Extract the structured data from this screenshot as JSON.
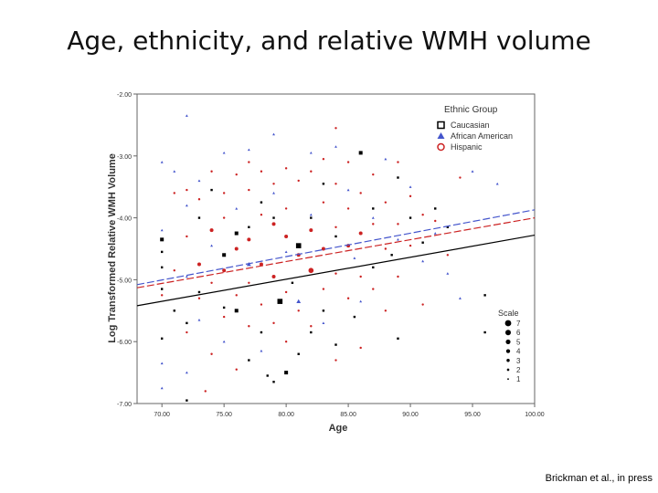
{
  "slide": {
    "title": "Age, ethnicity, and relative WMH volume",
    "citation": "Brickman et al., in press"
  },
  "colors": {
    "caucasian": "#000000",
    "african_american": "#4455cc",
    "hispanic": "#cc2222",
    "axis": "#666666"
  },
  "chart_data": {
    "type": "scatter",
    "title": "",
    "xlabel": "Age",
    "ylabel": "Log Transformed Relative WMH Volume",
    "xlim": [
      68,
      100
    ],
    "ylim": [
      -7.0,
      -2.0
    ],
    "xticks": [
      70,
      75,
      80,
      85,
      90,
      95,
      100
    ],
    "xtick_labels": [
      "70.00",
      "75.00",
      "80.00",
      "85.00",
      "90.00",
      "95.00",
      "100.00"
    ],
    "yticks": [
      -2,
      -3,
      -4,
      -5,
      -6,
      -7
    ],
    "ytick_labels": [
      "-2.00",
      "-3.00",
      "-4.00",
      "-5.00",
      "-6.00",
      "-7.00"
    ],
    "legend": {
      "title": "Ethnic Group",
      "position": "top-right",
      "entries": [
        "Caucasian",
        "African American",
        "Hispanic"
      ]
    },
    "scale_legend": {
      "title": "Scale",
      "position": "bottom-right",
      "sizes": [
        "7",
        "6",
        "5",
        "4",
        "3",
        "2",
        "1"
      ]
    },
    "fit_lines": [
      {
        "group": "Caucasian",
        "style": "solid",
        "x": [
          68,
          100
        ],
        "y": [
          -5.42,
          -4.28
        ]
      },
      {
        "group": "African American",
        "style": "dashed",
        "x": [
          68,
          100
        ],
        "y": [
          -5.08,
          -3.87
        ]
      },
      {
        "group": "Hispanic",
        "style": "dashed",
        "x": [
          68,
          100
        ],
        "y": [
          -5.13,
          -4.0
        ]
      }
    ],
    "series": [
      {
        "name": "Caucasian",
        "marker": "square",
        "points": [
          [
            70.0,
            -4.35,
            2
          ],
          [
            70.0,
            -4.55,
            1
          ],
          [
            70.0,
            -4.8,
            1
          ],
          [
            70.0,
            -5.15,
            1
          ],
          [
            70.0,
            -5.95,
            1
          ],
          [
            71.0,
            -5.5,
            1
          ],
          [
            72.0,
            -6.95,
            1
          ],
          [
            72.0,
            -5.7,
            1
          ],
          [
            73.0,
            -4.0,
            1
          ],
          [
            73.0,
            -5.2,
            1
          ],
          [
            74.0,
            -3.55,
            1
          ],
          [
            75.0,
            -4.6,
            2
          ],
          [
            75.0,
            -5.45,
            1
          ],
          [
            76.0,
            -4.25,
            2
          ],
          [
            76.0,
            -5.5,
            2
          ],
          [
            77.0,
            -4.15,
            1
          ],
          [
            77.0,
            -6.3,
            1
          ],
          [
            78.0,
            -3.75,
            1
          ],
          [
            78.0,
            -5.85,
            1
          ],
          [
            78.5,
            -6.55,
            1
          ],
          [
            79.0,
            -4.0,
            1
          ],
          [
            79.0,
            -6.65,
            1
          ],
          [
            79.5,
            -5.35,
            3
          ],
          [
            80.0,
            -6.5,
            2
          ],
          [
            80.5,
            -5.05,
            1
          ],
          [
            81.0,
            -4.45,
            3
          ],
          [
            81.0,
            -6.2,
            1
          ],
          [
            82.0,
            -4.0,
            1
          ],
          [
            82.0,
            -5.85,
            1
          ],
          [
            83.0,
            -3.45,
            1
          ],
          [
            83.0,
            -5.5,
            1
          ],
          [
            84.0,
            -4.3,
            1
          ],
          [
            84.0,
            -6.05,
            1
          ],
          [
            85.5,
            -5.6,
            1
          ],
          [
            86.0,
            -2.95,
            2
          ],
          [
            87.0,
            -3.85,
            1
          ],
          [
            87.0,
            -4.8,
            1
          ],
          [
            88.5,
            -4.6,
            1
          ],
          [
            89.0,
            -3.35,
            1
          ],
          [
            89.0,
            -5.95,
            1
          ],
          [
            90.0,
            -4.0,
            1
          ],
          [
            91.0,
            -4.4,
            1
          ],
          [
            92.0,
            -3.85,
            1
          ],
          [
            93.0,
            -4.15,
            1
          ],
          [
            96.0,
            -5.25,
            1
          ],
          [
            96.0,
            -5.85,
            1
          ]
        ]
      },
      {
        "name": "African American",
        "marker": "triangle",
        "points": [
          [
            70.0,
            -3.1,
            1
          ],
          [
            70.0,
            -4.2,
            1
          ],
          [
            70.0,
            -6.35,
            1
          ],
          [
            70.0,
            -6.75,
            1
          ],
          [
            71.0,
            -3.25,
            1
          ],
          [
            72.0,
            -2.35,
            1
          ],
          [
            72.0,
            -3.8,
            1
          ],
          [
            72.0,
            -4.95,
            1
          ],
          [
            72.0,
            -6.5,
            1
          ],
          [
            73.0,
            -3.4,
            1
          ],
          [
            73.0,
            -5.65,
            1
          ],
          [
            74.0,
            -4.45,
            1
          ],
          [
            75.0,
            -2.95,
            1
          ],
          [
            75.0,
            -6.0,
            1
          ],
          [
            76.0,
            -3.85,
            1
          ],
          [
            77.0,
            -2.9,
            1
          ],
          [
            77.0,
            -4.75,
            2
          ],
          [
            78.0,
            -6.15,
            1
          ],
          [
            79.0,
            -2.65,
            1
          ],
          [
            79.0,
            -3.6,
            1
          ],
          [
            80.0,
            -4.55,
            1
          ],
          [
            81.0,
            -5.35,
            2
          ],
          [
            82.0,
            -2.95,
            1
          ],
          [
            82.0,
            -3.95,
            1
          ],
          [
            83.0,
            -5.7,
            1
          ],
          [
            84.0,
            -2.85,
            1
          ],
          [
            85.0,
            -3.55,
            1
          ],
          [
            85.5,
            -4.65,
            1
          ],
          [
            86.0,
            -5.35,
            1
          ],
          [
            87.0,
            -4.0,
            1
          ],
          [
            88.0,
            -3.05,
            1
          ],
          [
            89.0,
            -4.35,
            1
          ],
          [
            90.0,
            -3.5,
            1
          ],
          [
            91.0,
            -4.7,
            1
          ],
          [
            92.0,
            -4.25,
            1
          ],
          [
            93.0,
            -4.9,
            1
          ],
          [
            94.0,
            -5.3,
            1
          ],
          [
            95.0,
            -3.25,
            1
          ],
          [
            97.0,
            -3.45,
            1
          ]
        ]
      },
      {
        "name": "Hispanic",
        "marker": "circle",
        "points": [
          [
            70.0,
            -5.25,
            1
          ],
          [
            71.0,
            -3.6,
            1
          ],
          [
            71.0,
            -4.85,
            1
          ],
          [
            72.0,
            -3.55,
            1
          ],
          [
            72.0,
            -4.3,
            1
          ],
          [
            72.0,
            -5.85,
            1
          ],
          [
            73.0,
            -3.7,
            1
          ],
          [
            73.0,
            -4.75,
            2
          ],
          [
            73.0,
            -5.3,
            1
          ],
          [
            73.5,
            -6.8,
            1
          ],
          [
            74.0,
            -3.25,
            1
          ],
          [
            74.0,
            -4.2,
            2
          ],
          [
            74.0,
            -5.05,
            1
          ],
          [
            74.0,
            -6.2,
            1
          ],
          [
            75.0,
            -3.6,
            1
          ],
          [
            75.0,
            -4.0,
            1
          ],
          [
            75.0,
            -4.85,
            2
          ],
          [
            75.0,
            -5.6,
            1
          ],
          [
            76.0,
            -3.3,
            1
          ],
          [
            76.0,
            -4.5,
            2
          ],
          [
            76.0,
            -5.25,
            1
          ],
          [
            76.0,
            -6.45,
            1
          ],
          [
            77.0,
            -3.1,
            1
          ],
          [
            77.0,
            -3.55,
            1
          ],
          [
            77.0,
            -4.35,
            2
          ],
          [
            77.0,
            -5.05,
            1
          ],
          [
            77.0,
            -5.75,
            1
          ],
          [
            78.0,
            -3.25,
            1
          ],
          [
            78.0,
            -3.95,
            1
          ],
          [
            78.0,
            -4.75,
            2
          ],
          [
            78.0,
            -5.4,
            1
          ],
          [
            79.0,
            -3.45,
            1
          ],
          [
            79.0,
            -4.1,
            2
          ],
          [
            79.0,
            -4.95,
            2
          ],
          [
            79.0,
            -5.7,
            1
          ],
          [
            80.0,
            -3.2,
            1
          ],
          [
            80.0,
            -3.85,
            1
          ],
          [
            80.0,
            -4.3,
            2
          ],
          [
            80.0,
            -5.2,
            1
          ],
          [
            80.0,
            -6.0,
            1
          ],
          [
            81.0,
            -3.4,
            1
          ],
          [
            81.0,
            -4.6,
            2
          ],
          [
            81.0,
            -5.5,
            1
          ],
          [
            82.0,
            -3.25,
            1
          ],
          [
            82.0,
            -4.2,
            2
          ],
          [
            82.0,
            -4.85,
            3
          ],
          [
            82.0,
            -5.75,
            1
          ],
          [
            83.0,
            -3.05,
            1
          ],
          [
            83.0,
            -3.75,
            1
          ],
          [
            83.0,
            -4.5,
            2
          ],
          [
            83.0,
            -5.15,
            1
          ],
          [
            84.0,
            -2.55,
            1
          ],
          [
            84.0,
            -3.45,
            1
          ],
          [
            84.0,
            -4.15,
            1
          ],
          [
            84.0,
            -4.9,
            1
          ],
          [
            84.0,
            -6.3,
            1
          ],
          [
            85.0,
            -3.1,
            1
          ],
          [
            85.0,
            -3.85,
            1
          ],
          [
            85.0,
            -4.45,
            2
          ],
          [
            85.0,
            -5.3,
            1
          ],
          [
            86.0,
            -3.6,
            1
          ],
          [
            86.0,
            -4.25,
            2
          ],
          [
            86.0,
            -4.95,
            1
          ],
          [
            86.0,
            -6.1,
            1
          ],
          [
            87.0,
            -3.3,
            1
          ],
          [
            87.0,
            -4.1,
            1
          ],
          [
            87.0,
            -5.15,
            1
          ],
          [
            88.0,
            -3.75,
            1
          ],
          [
            88.0,
            -4.5,
            1
          ],
          [
            88.0,
            -5.5,
            1
          ],
          [
            89.0,
            -3.1,
            1
          ],
          [
            89.0,
            -4.1,
            1
          ],
          [
            89.0,
            -4.95,
            1
          ],
          [
            90.0,
            -3.65,
            1
          ],
          [
            90.0,
            -4.45,
            1
          ],
          [
            91.0,
            -3.95,
            1
          ],
          [
            91.0,
            -5.4,
            1
          ],
          [
            92.0,
            -4.05,
            1
          ],
          [
            93.0,
            -4.6,
            1
          ],
          [
            94.0,
            -3.35,
            1
          ]
        ]
      }
    ]
  }
}
